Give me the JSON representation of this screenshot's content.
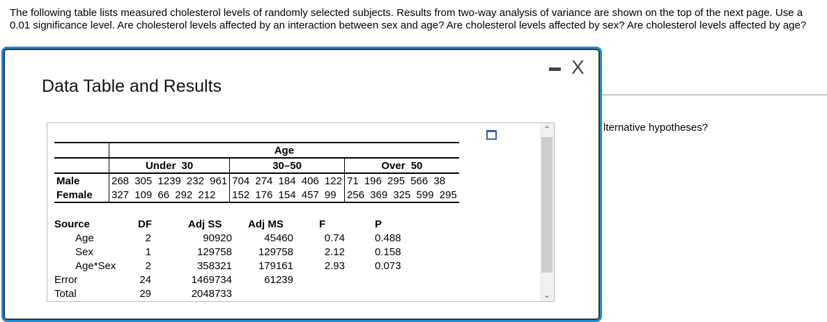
{
  "question": "The following table lists measured cholesterol levels of randomly selected subjects. Results from two-way analysis of variance are shown on the top of the next page. Use a 0.01 significance level. Are cholesterol levels affected by an interaction between sex and age? Are cholesterol levels affected by sex? Are cholesterol levels affected by age?",
  "behind_text": "lternative hypotheses?",
  "dialog": {
    "title": "Data Table and Results",
    "minimize_icon": "minimize-icon",
    "close_label": "X"
  },
  "data_table": {
    "factor": "Age",
    "groups": [
      "Under 30",
      "30–50",
      "Over 50"
    ],
    "rows": [
      {
        "label": "Male",
        "cells": [
          "268  305 1239 232  961",
          "704  274  184  406  122",
          "71   196  295  566   38"
        ]
      },
      {
        "label": "Female",
        "cells": [
          "327  109   66   292  212",
          "152  176  154  457   99",
          "256  369  325  599  295"
        ]
      }
    ]
  },
  "anova": {
    "headers": [
      "Source",
      "DF",
      "Adj SS",
      "Adj MS",
      "F",
      "P"
    ],
    "rows": [
      [
        "Age",
        "2",
        "90920",
        "45460",
        "0.74",
        "0.488"
      ],
      [
        "Sex",
        "1",
        "129758",
        "129758",
        "2.12",
        "0.158"
      ],
      [
        "Age*Sex",
        "2",
        "358321",
        "179161",
        "2.93",
        "0.073"
      ],
      [
        "Error",
        "24",
        "1469734",
        "61239",
        "",
        ""
      ],
      [
        "Total",
        "29",
        "2048733",
        "",
        "",
        ""
      ]
    ]
  }
}
